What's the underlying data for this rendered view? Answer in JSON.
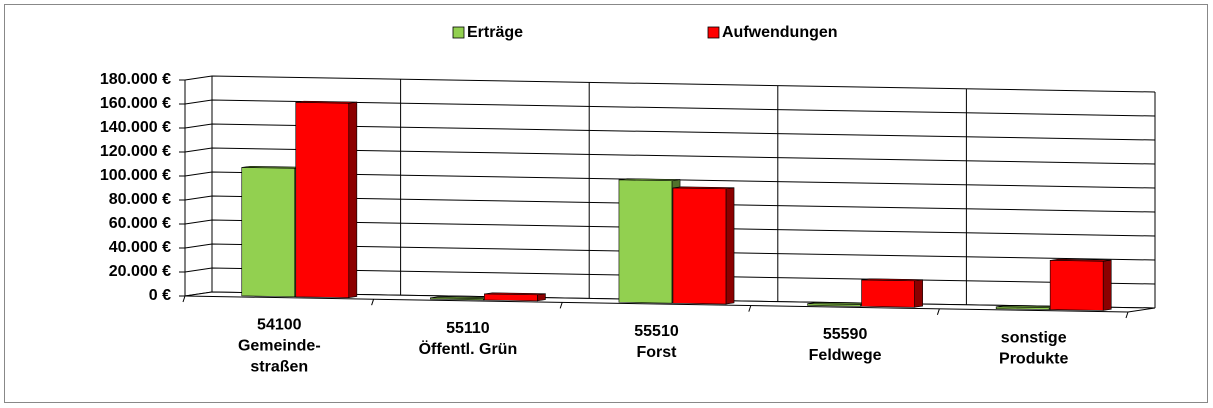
{
  "chart_data": {
    "type": "bar3d",
    "categories": [
      "54100\nGemeinde-\nstraßen",
      "55110\nÖffentl. Grün",
      "55510\nForst",
      "55590\nFeldwege",
      "sonstige\nProdukte"
    ],
    "series": [
      {
        "name": "Erträge",
        "color": "#92d050",
        "values": [
          107000,
          1000,
          102000,
          1500,
          1500
        ]
      },
      {
        "name": "Aufwendungen",
        "color": "#ff0000",
        "values": [
          162000,
          5000,
          96000,
          22000,
          41000
        ]
      }
    ],
    "ylim": [
      0,
      180000
    ],
    "yticks": [
      {
        "value": 0,
        "label": "0 €"
      },
      {
        "value": 20000,
        "label": "20.000 €"
      },
      {
        "value": 40000,
        "label": "40.000 €"
      },
      {
        "value": 60000,
        "label": "60.000 €"
      },
      {
        "value": 80000,
        "label": "80.000 €"
      },
      {
        "value": 100000,
        "label": "100.000 €"
      },
      {
        "value": 120000,
        "label": "120.000 €"
      },
      {
        "value": 140000,
        "label": "140.000 €"
      },
      {
        "value": 160000,
        "label": "160.000 €"
      },
      {
        "value": 180000,
        "label": "180.000 €"
      }
    ],
    "grid": true,
    "legend": "top"
  }
}
